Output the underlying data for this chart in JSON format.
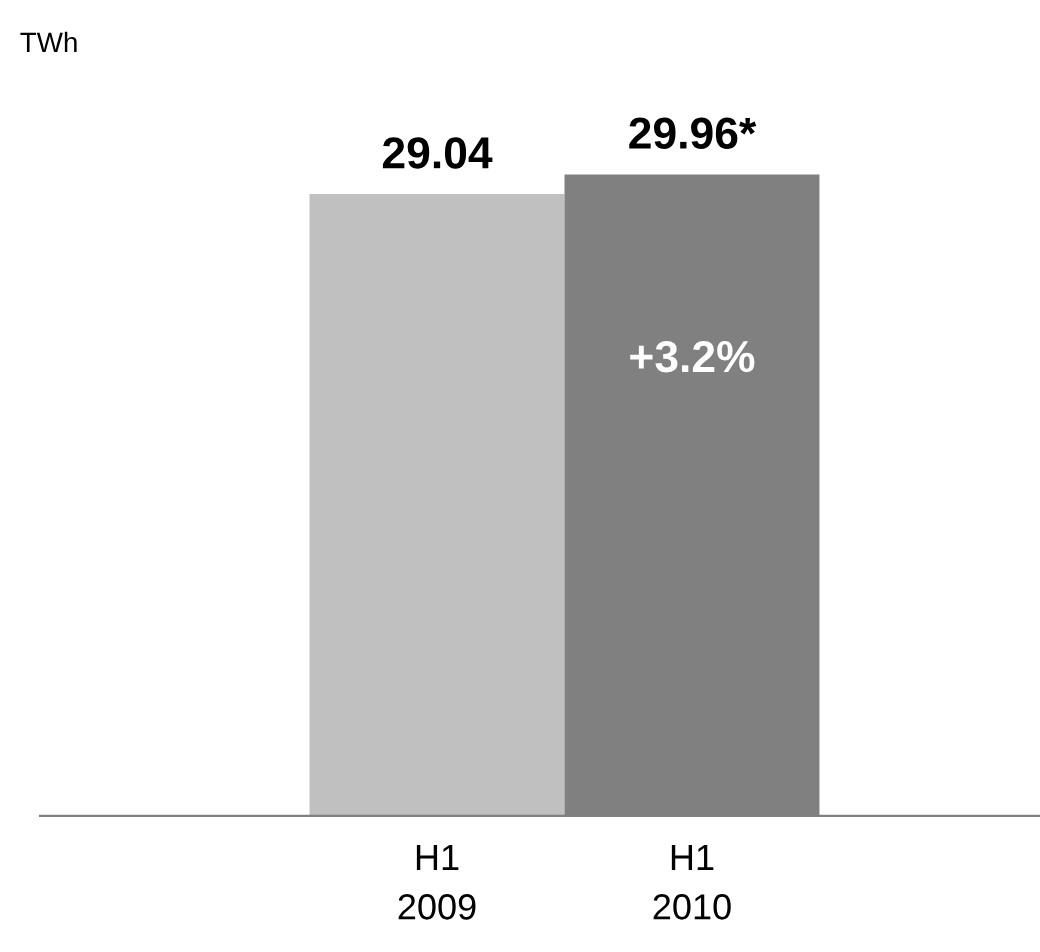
{
  "chart_data": {
    "type": "bar",
    "categories": [
      "H1\n2009",
      "H1\n2010"
    ],
    "values": [
      29.04,
      29.96
    ],
    "colors": [
      "#c0c0c0",
      "#808080"
    ],
    "value_labels": [
      "29.04",
      "29.96*"
    ],
    "annotations": [
      "TWh",
      "+3.2%"
    ],
    "grid": false,
    "legend": false
  }
}
